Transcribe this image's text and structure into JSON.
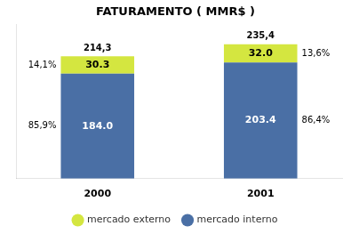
{
  "chart_data": {
    "type": "bar",
    "title": "FATURAMENTO ( MMR$ )",
    "categories": [
      "2000",
      "2001"
    ],
    "stacked": true,
    "series": [
      {
        "name": "mercado interno",
        "color": "#4a6fa5",
        "values": [
          184.0,
          203.4
        ],
        "value_labels": [
          "184.0",
          "203.4"
        ],
        "shares": [
          85.9,
          86.4
        ],
        "share_labels": [
          "85,9%",
          "86,4%"
        ]
      },
      {
        "name": "mercado externo",
        "color": "#d4e640",
        "values": [
          30.3,
          32.0
        ],
        "value_labels": [
          "30.3",
          "32.0"
        ],
        "shares": [
          14.1,
          13.6
        ],
        "share_labels": [
          "14,1%",
          "13,6%"
        ]
      }
    ],
    "totals": [
      214.3,
      235.4
    ],
    "total_labels": [
      "214,3",
      "235,4"
    ],
    "data_labels": true,
    "ylim": [
      0,
      270
    ],
    "grid": false,
    "tick_labels": "x",
    "legend": "bottom"
  }
}
